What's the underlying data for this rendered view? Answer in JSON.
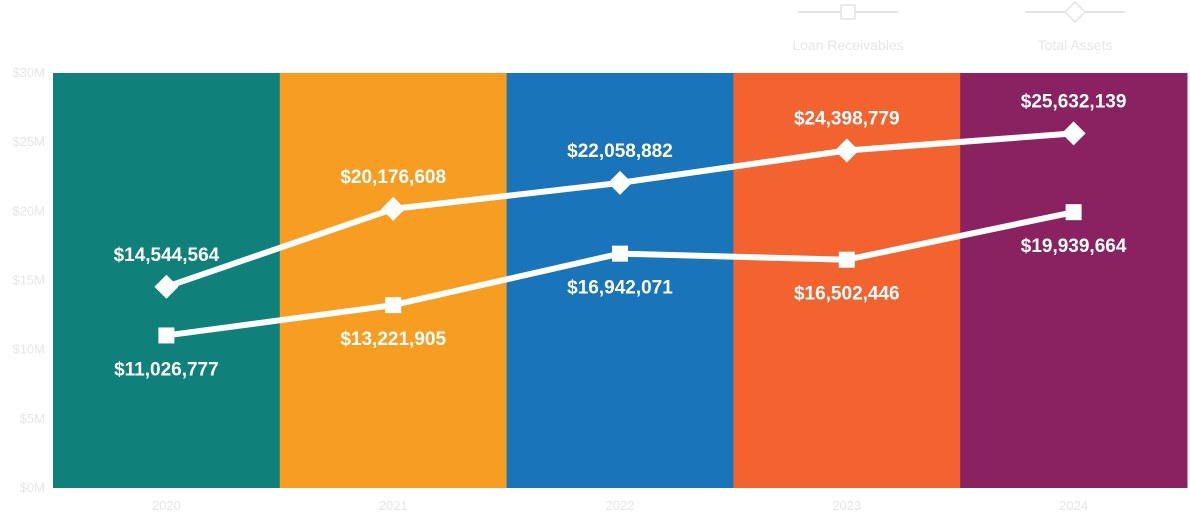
{
  "chart_data": {
    "type": "line",
    "categories": [
      "2020",
      "2021",
      "2022",
      "2023",
      "2024"
    ],
    "band_colors": [
      "#10807b",
      "#f79e22",
      "#1a74b9",
      "#f26330",
      "#8a2262"
    ],
    "series": [
      {
        "name": "Loan Receivables",
        "marker": "square",
        "values": [
          11026777,
          13221905,
          16942071,
          16502446,
          19939664
        ],
        "labels": [
          "$11,026,777",
          "$13,221,905",
          "$16,942,071",
          "$16,502,446",
          "$19,939,664"
        ],
        "label_position": "below"
      },
      {
        "name": "Total Assets",
        "marker": "diamond",
        "values": [
          14544564,
          20176608,
          22058882,
          24398779,
          25632139
        ],
        "labels": [
          "$14,544,564",
          "$20,176,608",
          "$22,058,882",
          "$24,398,779",
          "$25,632,139"
        ],
        "label_position": "above"
      }
    ],
    "ylim": [
      0,
      30000000
    ],
    "y_ticks": [
      0,
      5000000,
      10000000,
      15000000,
      20000000,
      25000000,
      30000000
    ],
    "y_tick_labels": [
      "$0M",
      "$5M",
      "$10M",
      "$15M",
      "$20M",
      "$25M",
      "$30M"
    ],
    "line_color": "#ffffff",
    "legend_position": "top-right",
    "grid": false
  }
}
